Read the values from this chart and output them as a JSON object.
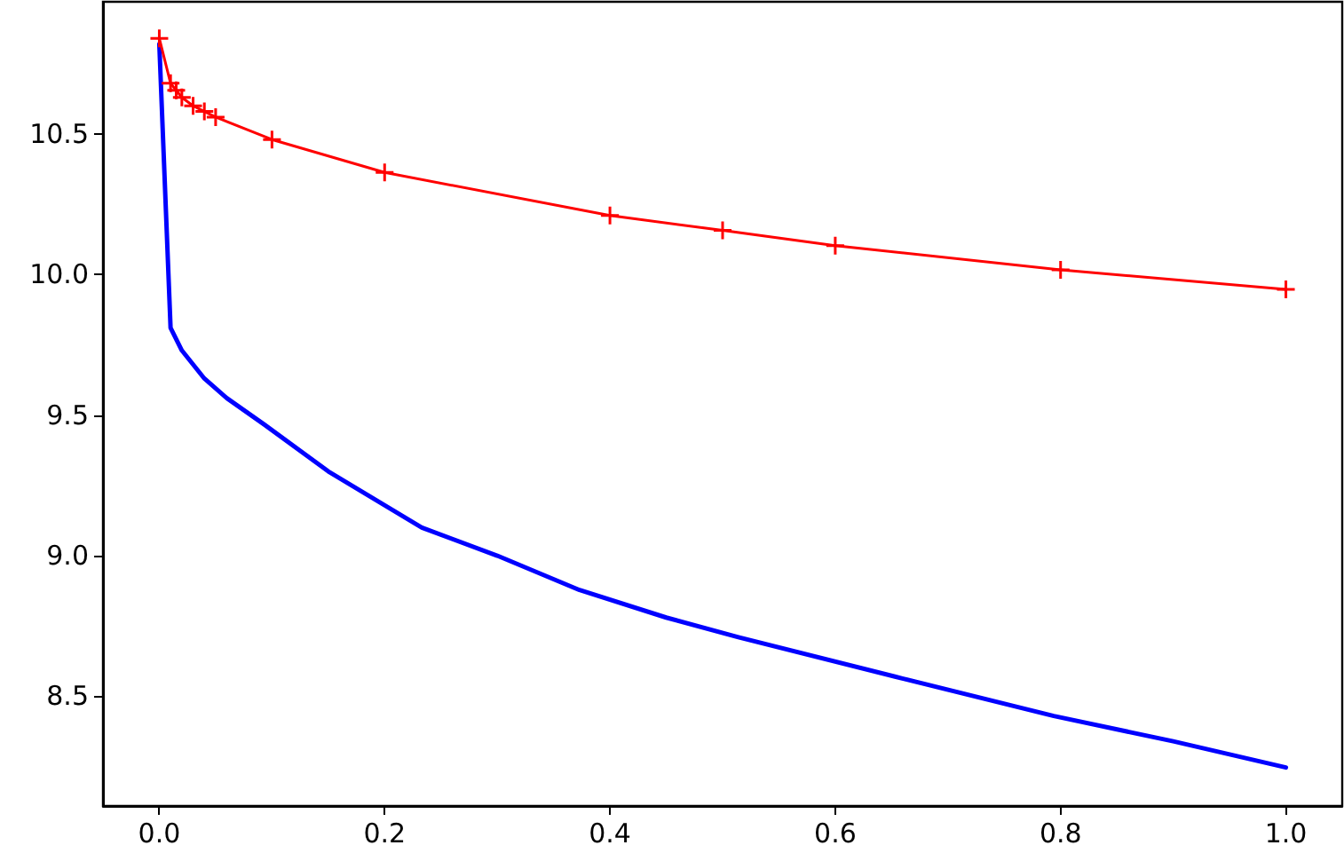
{
  "chart_data": {
    "type": "line",
    "xlim": [
      -0.05,
      1.05
    ],
    "xticks": [
      {
        "value": 0,
        "label": "0.0"
      },
      0.2,
      0.4,
      0.6,
      0.8,
      {
        "value": 1,
        "label": "1.0"
      }
    ],
    "ylim": [
      8.11,
      10.97
    ],
    "yticks": [
      8.5,
      {
        "value": 9,
        "label": "9.0"
      },
      9.5,
      {
        "value": 10,
        "label": "10.0"
      },
      10.5
    ],
    "grid": false,
    "series": [
      {
        "color": "#0000ff",
        "marker": "none",
        "x": [
          0,
          0.01,
          0.02,
          0.04,
          0.06,
          0.093,
          0.15,
          0.233,
          0.3,
          0.373,
          0.45,
          0.514,
          0.653,
          0.794,
          0.9,
          1.0
        ],
        "values": [
          10.82,
          9.81,
          9.73,
          9.63,
          9.56,
          9.467,
          9.3,
          9.1,
          9.0,
          8.878,
          8.78,
          8.71,
          8.57,
          8.43,
          8.34,
          8.247
        ]
      },
      {
        "color": "#ff0000",
        "marker": "cross",
        "x": [
          0,
          0.01,
          0.015,
          0.02,
          0.03,
          0.04,
          0.05,
          0.1,
          0.2,
          0.4,
          0.5,
          0.6,
          0.8,
          1.0
        ],
        "values": [
          10.84,
          10.68,
          10.655,
          10.63,
          10.6,
          10.58,
          10.56,
          10.48,
          10.363,
          10.21,
          10.157,
          10.103,
          10.017,
          9.947
        ]
      }
    ]
  }
}
